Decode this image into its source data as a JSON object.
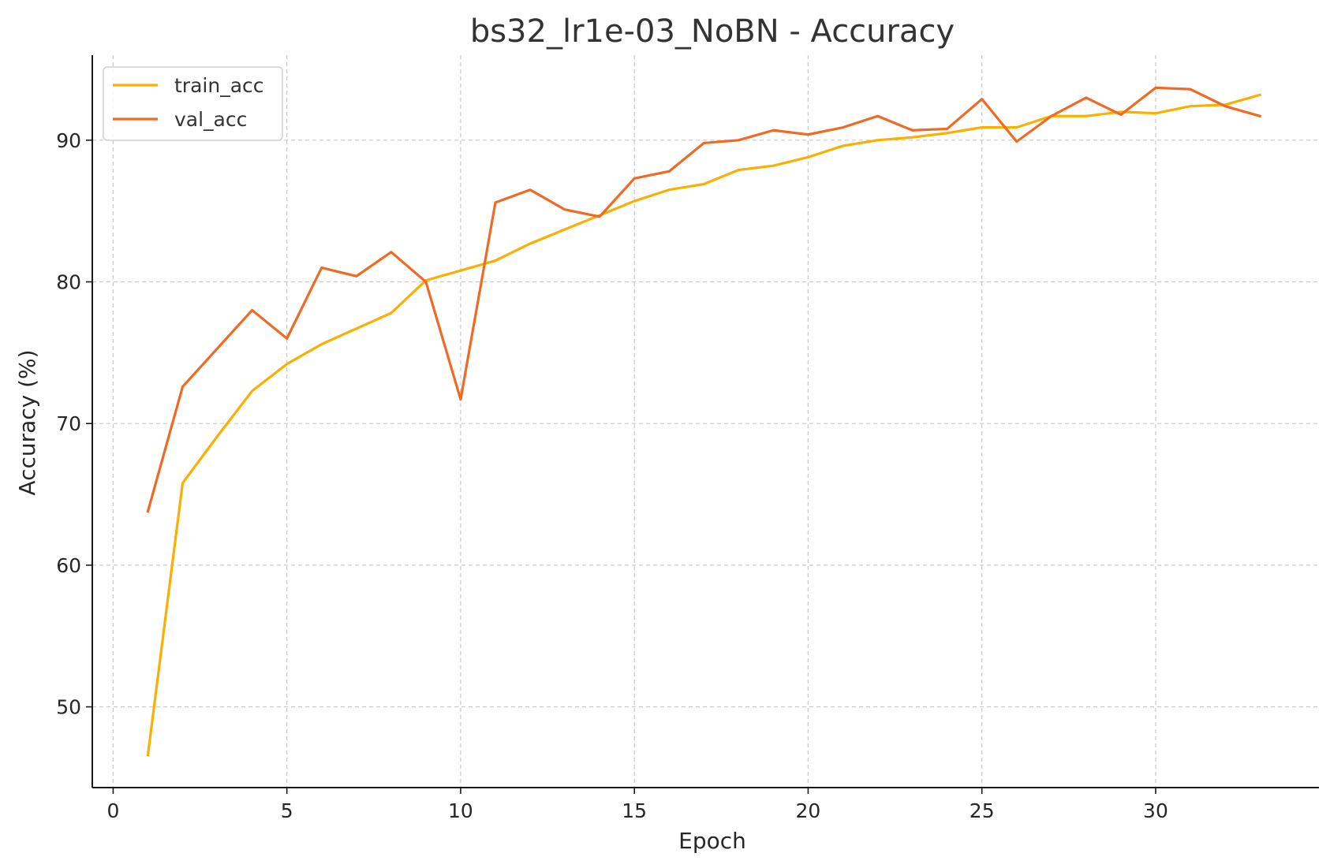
{
  "chart_data": {
    "type": "line",
    "title": "bs32_lr1e-03_NoBN - Accuracy",
    "xlabel": "Epoch",
    "ylabel": "Accuracy (%)",
    "xlim": [
      -0.6,
      34.7
    ],
    "ylim": [
      44.3,
      96.0
    ],
    "xticks": [
      0,
      5,
      10,
      15,
      20,
      25,
      30
    ],
    "yticks": [
      50,
      60,
      70,
      80,
      90
    ],
    "grid": true,
    "legend_position": "top-left",
    "x": [
      1,
      2,
      3,
      4,
      5,
      6,
      7,
      8,
      9,
      10,
      11,
      12,
      13,
      14,
      15,
      16,
      17,
      18,
      19,
      20,
      21,
      22,
      23,
      24,
      25,
      26,
      27,
      28,
      29,
      30,
      31,
      32,
      33
    ],
    "series": [
      {
        "name": "train_acc",
        "color": "#FBAF00",
        "values": [
          46.6,
          65.8,
          69.1,
          72.3,
          74.2,
          75.6,
          76.7,
          77.8,
          80.1,
          80.8,
          81.5,
          82.7,
          83.7,
          84.7,
          85.7,
          86.5,
          86.9,
          87.9,
          88.2,
          88.8,
          89.6,
          90.0,
          90.2,
          90.5,
          90.9,
          90.9,
          91.7,
          91.7,
          92.0,
          91.9,
          92.4,
          92.5,
          93.2
        ]
      },
      {
        "name": "val_acc",
        "color": "#F06A23",
        "values": [
          63.8,
          72.6,
          75.3,
          78.0,
          76.0,
          81.0,
          80.4,
          82.1,
          80.0,
          71.7,
          85.6,
          86.5,
          85.1,
          84.6,
          87.3,
          87.8,
          89.8,
          90.0,
          90.7,
          90.4,
          90.9,
          91.7,
          90.7,
          90.8,
          92.9,
          89.9,
          91.7,
          93.0,
          91.8,
          93.7,
          93.6,
          92.4,
          91.7
        ]
      }
    ]
  }
}
